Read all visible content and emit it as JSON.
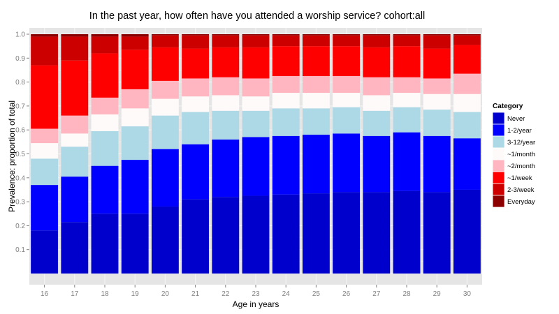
{
  "chart_data": {
    "type": "bar",
    "stacked": true,
    "title": "In the past year, how often have you attended a worship service?   cohort:all",
    "xlabel": "Age in years",
    "ylabel": "Prevalence: proportion of total",
    "ylim": [
      0,
      1.0
    ],
    "yticks": [
      "0.1",
      "0.2",
      "0.3",
      "0.4",
      "0.5",
      "0.6",
      "0.7",
      "0.8",
      "0.9",
      "1.0"
    ],
    "categories": [
      "16",
      "17",
      "18",
      "19",
      "20",
      "21",
      "22",
      "23",
      "24",
      "25",
      "26",
      "27",
      "28",
      "29",
      "30"
    ],
    "legend": {
      "title": "Category",
      "position": "right"
    },
    "series": [
      {
        "name": "Never",
        "color": "#0000CD",
        "values": [
          0.18,
          0.215,
          0.25,
          0.25,
          0.28,
          0.31,
          0.32,
          0.325,
          0.33,
          0.335,
          0.34,
          0.34,
          0.345,
          0.34,
          0.35
        ]
      },
      {
        "name": "1-2/year",
        "color": "#0000FF",
        "values": [
          0.19,
          0.19,
          0.2,
          0.225,
          0.24,
          0.23,
          0.24,
          0.245,
          0.245,
          0.245,
          0.245,
          0.235,
          0.245,
          0.235,
          0.215
        ]
      },
      {
        "name": "3-12/year",
        "color": "#ADD8E6",
        "values": [
          0.11,
          0.125,
          0.145,
          0.14,
          0.14,
          0.135,
          0.12,
          0.11,
          0.115,
          0.11,
          0.11,
          0.105,
          0.105,
          0.11,
          0.11
        ]
      },
      {
        "name": "~1/month",
        "color": "#FFFAFA",
        "values": [
          0.065,
          0.055,
          0.07,
          0.075,
          0.07,
          0.065,
          0.065,
          0.06,
          0.065,
          0.065,
          0.06,
          0.065,
          0.06,
          0.065,
          0.075
        ]
      },
      {
        "name": "~2/month",
        "color": "#FFB6C1",
        "values": [
          0.06,
          0.075,
          0.07,
          0.08,
          0.075,
          0.075,
          0.075,
          0.075,
          0.07,
          0.07,
          0.07,
          0.075,
          0.065,
          0.065,
          0.085
        ]
      },
      {
        "name": "~1/week",
        "color": "#FF0000",
        "values": [
          0.265,
          0.23,
          0.185,
          0.165,
          0.14,
          0.125,
          0.125,
          0.13,
          0.125,
          0.125,
          0.125,
          0.125,
          0.13,
          0.125,
          0.12
        ]
      },
      {
        "name": "2-3/week",
        "color": "#CD0000",
        "values": [
          0.12,
          0.1,
          0.07,
          0.055,
          0.05,
          0.055,
          0.05,
          0.05,
          0.045,
          0.045,
          0.045,
          0.05,
          0.045,
          0.055,
          0.04
        ]
      },
      {
        "name": "Everyday",
        "color": "#8B0000",
        "values": [
          0.01,
          0.01,
          0.01,
          0.01,
          0.005,
          0.005,
          0.005,
          0.005,
          0.005,
          0.005,
          0.005,
          0.005,
          0.005,
          0.005,
          0.005
        ]
      }
    ]
  }
}
